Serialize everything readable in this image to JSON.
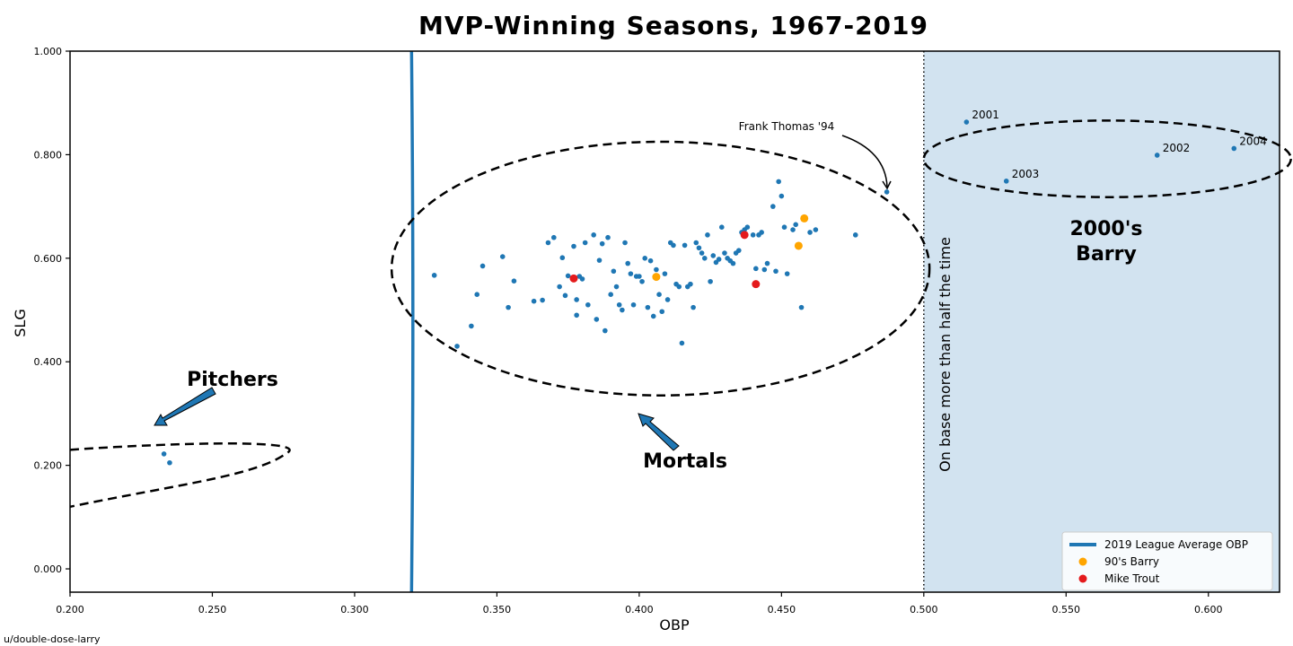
{
  "credit": "u/double-dose-larry",
  "chart_data": {
    "type": "scatter",
    "title": "MVP-Winning Seasons, 1967-2019",
    "xlabel": "OBP",
    "ylabel": "SLG",
    "xlim": [
      0.2,
      0.625
    ],
    "ylim": [
      -0.045,
      1.0
    ],
    "xticks": [
      "0.200",
      "0.250",
      "0.300",
      "0.350",
      "0.400",
      "0.450",
      "0.500",
      "0.550",
      "0.600"
    ],
    "yticks": [
      "0.000",
      "0.200",
      "0.400",
      "0.600",
      "0.800",
      "1.000"
    ],
    "grid": false,
    "legend_position": "bottom-right",
    "colors": {
      "mvp": "#1f77b4",
      "barry90s": "#ffa500",
      "trout": "#e41a1c",
      "league_line": "#1f77b4",
      "shade": "#d2e3f0"
    },
    "reference_line": {
      "name": "2019 League Average OBP",
      "x": 0.32
    },
    "threshold_line": {
      "x": 0.5,
      "label": "On base more than half the time"
    },
    "series": [
      {
        "role": "mvp",
        "points": [
          [
            0.233,
            0.222
          ],
          [
            0.235,
            0.205
          ],
          [
            0.328,
            0.567
          ],
          [
            0.336,
            0.43
          ],
          [
            0.341,
            0.469
          ],
          [
            0.343,
            0.53
          ],
          [
            0.345,
            0.585
          ],
          [
            0.352,
            0.603
          ],
          [
            0.354,
            0.505
          ],
          [
            0.356,
            0.556
          ],
          [
            0.363,
            0.517
          ],
          [
            0.366,
            0.519
          ],
          [
            0.368,
            0.63
          ],
          [
            0.37,
            0.64
          ],
          [
            0.372,
            0.545
          ],
          [
            0.373,
            0.601
          ],
          [
            0.374,
            0.528
          ],
          [
            0.375,
            0.566
          ],
          [
            0.377,
            0.623
          ],
          [
            0.378,
            0.49
          ],
          [
            0.378,
            0.52
          ],
          [
            0.379,
            0.565
          ],
          [
            0.38,
            0.56
          ],
          [
            0.381,
            0.63
          ],
          [
            0.382,
            0.51
          ],
          [
            0.384,
            0.645
          ],
          [
            0.385,
            0.482
          ],
          [
            0.386,
            0.596
          ],
          [
            0.387,
            0.628
          ],
          [
            0.388,
            0.46
          ],
          [
            0.389,
            0.64
          ],
          [
            0.39,
            0.53
          ],
          [
            0.391,
            0.575
          ],
          [
            0.392,
            0.545
          ],
          [
            0.393,
            0.51
          ],
          [
            0.394,
            0.5
          ],
          [
            0.395,
            0.63
          ],
          [
            0.396,
            0.59
          ],
          [
            0.397,
            0.57
          ],
          [
            0.398,
            0.51
          ],
          [
            0.399,
            0.565
          ],
          [
            0.4,
            0.565
          ],
          [
            0.401,
            0.555
          ],
          [
            0.402,
            0.6
          ],
          [
            0.403,
            0.505
          ],
          [
            0.404,
            0.595
          ],
          [
            0.405,
            0.488
          ],
          [
            0.406,
            0.578
          ],
          [
            0.407,
            0.53
          ],
          [
            0.408,
            0.497
          ],
          [
            0.409,
            0.57
          ],
          [
            0.41,
            0.52
          ],
          [
            0.411,
            0.63
          ],
          [
            0.412,
            0.625
          ],
          [
            0.413,
            0.55
          ],
          [
            0.414,
            0.545
          ],
          [
            0.415,
            0.436
          ],
          [
            0.416,
            0.625
          ],
          [
            0.417,
            0.545
          ],
          [
            0.418,
            0.55
          ],
          [
            0.419,
            0.505
          ],
          [
            0.42,
            0.63
          ],
          [
            0.421,
            0.62
          ],
          [
            0.422,
            0.61
          ],
          [
            0.423,
            0.6
          ],
          [
            0.424,
            0.645
          ],
          [
            0.425,
            0.555
          ],
          [
            0.426,
            0.605
          ],
          [
            0.427,
            0.592
          ],
          [
            0.428,
            0.598
          ],
          [
            0.429,
            0.66
          ],
          [
            0.43,
            0.61
          ],
          [
            0.431,
            0.6
          ],
          [
            0.432,
            0.595
          ],
          [
            0.433,
            0.59
          ],
          [
            0.434,
            0.61
          ],
          [
            0.435,
            0.615
          ],
          [
            0.436,
            0.65
          ],
          [
            0.437,
            0.655
          ],
          [
            0.438,
            0.66
          ],
          [
            0.44,
            0.645
          ],
          [
            0.441,
            0.58
          ],
          [
            0.442,
            0.645
          ],
          [
            0.443,
            0.65
          ],
          [
            0.444,
            0.578
          ],
          [
            0.445,
            0.59
          ],
          [
            0.448,
            0.575
          ],
          [
            0.451,
            0.66
          ],
          [
            0.452,
            0.57
          ],
          [
            0.454,
            0.655
          ],
          [
            0.455,
            0.665
          ],
          [
            0.457,
            0.505
          ],
          [
            0.46,
            0.65
          ],
          [
            0.462,
            0.655
          ],
          [
            0.447,
            0.7
          ],
          [
            0.449,
            0.748
          ],
          [
            0.45,
            0.72
          ],
          [
            0.476,
            0.645
          ],
          [
            0.487,
            0.728
          ],
          [
            0.515,
            0.863
          ],
          [
            0.529,
            0.749
          ],
          [
            0.582,
            0.799
          ],
          [
            0.609,
            0.812
          ]
        ]
      },
      {
        "role": "barry90s",
        "name": "90's Barry",
        "points": [
          [
            0.406,
            0.564
          ],
          [
            0.456,
            0.624
          ],
          [
            0.458,
            0.677
          ]
        ]
      },
      {
        "role": "trout",
        "name": "Mike Trout",
        "points": [
          [
            0.377,
            0.561
          ],
          [
            0.437,
            0.645
          ],
          [
            0.441,
            0.55
          ]
        ]
      }
    ],
    "annotations": {
      "pitchers": "Pitchers",
      "mortals": "Mortals",
      "frank_thomas": "Frank Thomas '94",
      "barry_line1": "2000's",
      "barry_line2": "Barry",
      "years": [
        {
          "label": "2001",
          "x": 0.515,
          "y": 0.863
        },
        {
          "label": "2002",
          "x": 0.582,
          "y": 0.799
        },
        {
          "label": "2003",
          "x": 0.529,
          "y": 0.749
        },
        {
          "label": "2004",
          "x": 0.609,
          "y": 0.812
        }
      ]
    }
  }
}
